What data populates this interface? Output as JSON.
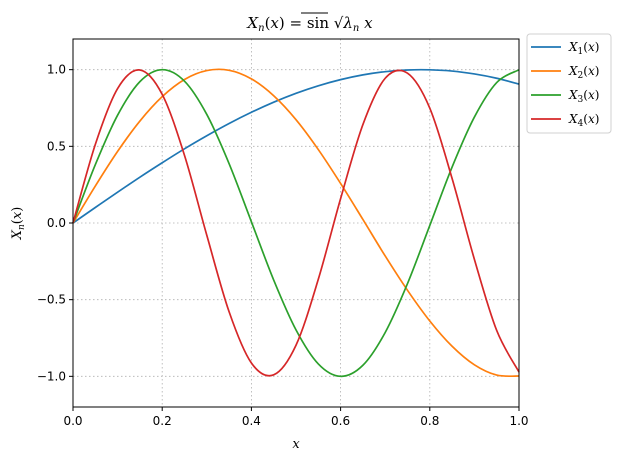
{
  "chart_data": {
    "type": "line",
    "title": "X_n(x) = sin √λ_n x",
    "xlabel": "x",
    "ylabel": "X_n(x)",
    "xlim": [
      0,
      1
    ],
    "ylim": [
      -1.2,
      1.2
    ],
    "x_ticks": [
      "0.0",
      "0.2",
      "0.4",
      "0.6",
      "0.8",
      "1.0"
    ],
    "y_ticks": [
      "−1.0",
      "−0.5",
      "0.0",
      "0.5",
      "1.0"
    ],
    "grid": true,
    "legend_position": "outside-top-right",
    "series": [
      {
        "name": "X1(x)",
        "sub": "1",
        "color": "#1f77b4",
        "x": [
          0.0,
          0.05,
          0.1,
          0.15,
          0.2,
          0.25,
          0.3,
          0.35,
          0.4,
          0.45,
          0.5,
          0.55,
          0.6,
          0.65,
          0.7,
          0.75,
          0.8,
          0.85,
          0.9,
          0.95,
          1.0
        ],
        "y": [
          0.0,
          0.101,
          0.201,
          0.299,
          0.393,
          0.484,
          0.569,
          0.649,
          0.722,
          0.788,
          0.846,
          0.895,
          0.935,
          0.966,
          0.987,
          0.998,
          0.999,
          0.991,
          0.972,
          0.944,
          0.906
        ]
      },
      {
        "name": "X2(x)",
        "sub": "2",
        "color": "#ff7f0e",
        "x": [
          0.0,
          0.05,
          0.1,
          0.15,
          0.2,
          0.25,
          0.3,
          0.35,
          0.4,
          0.45,
          0.5,
          0.55,
          0.6,
          0.65,
          0.7,
          0.75,
          0.8,
          0.85,
          0.9,
          0.95,
          1.0
        ],
        "y": [
          0.0,
          0.241,
          0.467,
          0.665,
          0.824,
          0.936,
          0.994,
          0.996,
          0.94,
          0.83,
          0.674,
          0.479,
          0.258,
          0.023,
          -0.215,
          -0.439,
          -0.639,
          -0.804,
          -0.925,
          -0.992,
          -0.998
        ]
      },
      {
        "name": "X3(x)",
        "sub": "3",
        "color": "#2ca02c",
        "x": [
          0.0,
          0.05,
          0.1,
          0.15,
          0.2,
          0.25,
          0.3,
          0.35,
          0.4,
          0.45,
          0.5,
          0.55,
          0.6,
          0.65,
          0.7,
          0.75,
          0.8,
          0.85,
          0.9,
          0.95,
          1.0
        ],
        "y": [
          0.0,
          0.38,
          0.703,
          0.922,
          1.0,
          0.925,
          0.708,
          0.387,
          0.008,
          -0.372,
          -0.697,
          -0.919,
          -1.0,
          -0.928,
          -0.714,
          -0.395,
          -0.016,
          0.365,
          0.691,
          0.916,
          0.999
        ]
      },
      {
        "name": "X4(x)",
        "sub": "4",
        "color": "#d62728",
        "x": [
          0.0,
          0.05,
          0.1,
          0.15,
          0.2,
          0.25,
          0.3,
          0.35,
          0.4,
          0.45,
          0.5,
          0.55,
          0.6,
          0.65,
          0.7,
          0.75,
          0.8,
          0.85,
          0.9,
          0.95,
          1.0
        ],
        "y": [
          0.0,
          0.512,
          0.877,
          0.998,
          0.839,
          0.441,
          -0.08,
          -0.579,
          -0.913,
          -0.99,
          -0.797,
          -0.367,
          0.159,
          0.642,
          0.944,
          0.977,
          0.749,
          0.29,
          -0.237,
          -0.701,
          -0.972
        ]
      }
    ]
  }
}
